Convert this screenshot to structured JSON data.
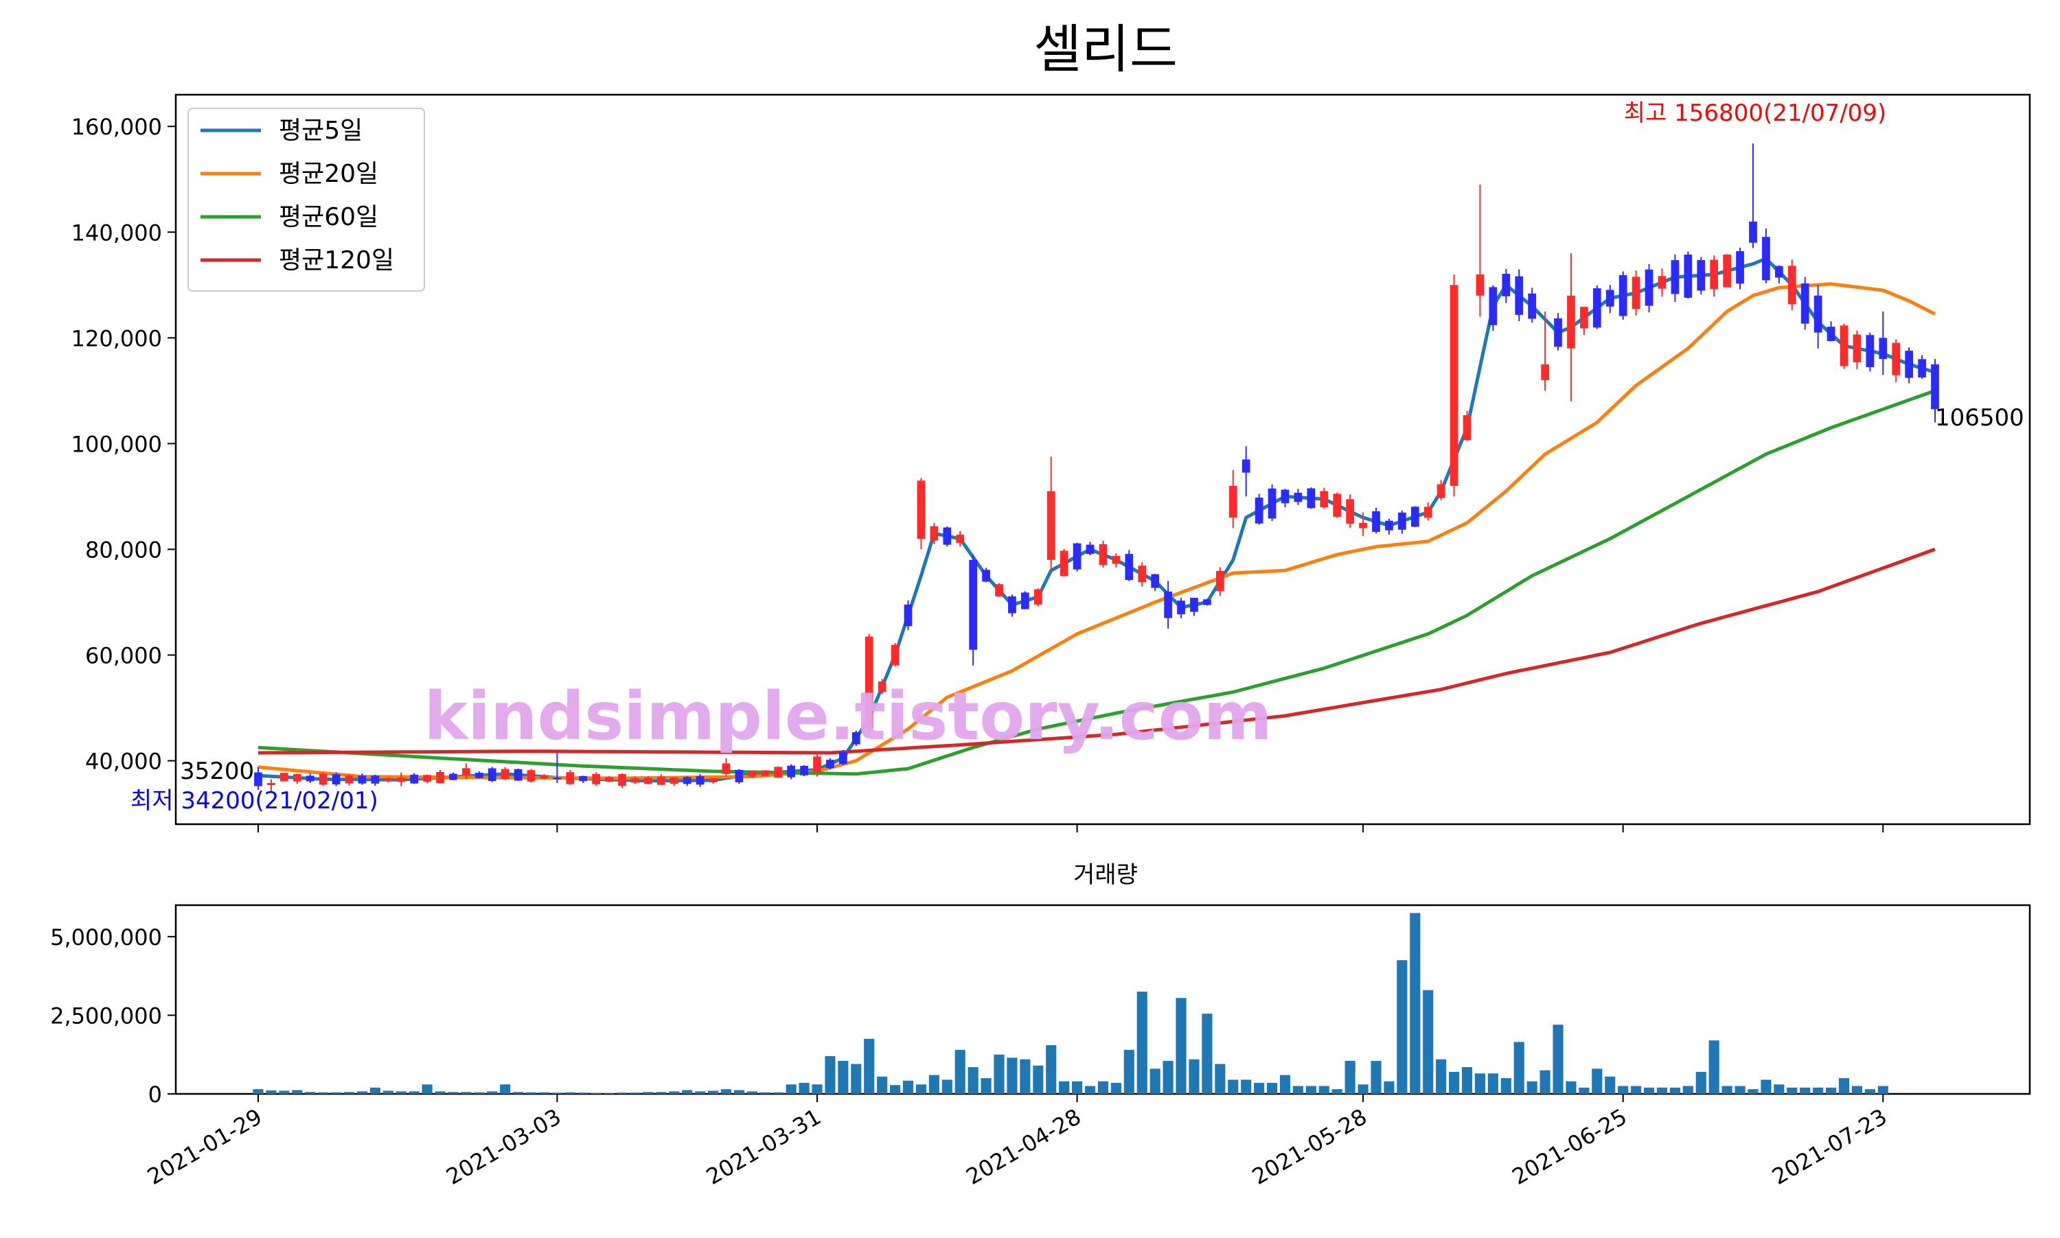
{
  "title": "셀리드",
  "watermark": "kindsimple.tistory.com",
  "volume_title": "거래량",
  "colors": {
    "up": "#ff2a2a",
    "down": "#2b2bff",
    "ma5": "#1f77b4",
    "ma20": "#ff7f0e",
    "ma60": "#2ca02c",
    "ma120": "#d62728",
    "volume": "#1f77b4",
    "high_label": "#ff0000",
    "low_label": "#0000ff",
    "watermark": "#e2a6ec"
  },
  "annotations": {
    "high": "최고 156800(21/07/09)",
    "low": "최저 34200(21/02/01)",
    "first_close": "35200",
    "last_close": "106500"
  },
  "chart_data": [
    {
      "type": "candlestick",
      "x_type": "date",
      "date_range": [
        "2021-01-29",
        "2021-07-29"
      ],
      "xticks": [
        "2021-01-29",
        "2021-03-03",
        "2021-03-31",
        "2021-04-28",
        "2021-05-28",
        "2021-06-25",
        "2021-07-23"
      ],
      "ylim": [
        28000,
        166000
      ],
      "yticks": [
        40000,
        60000,
        80000,
        100000,
        120000,
        140000,
        160000
      ],
      "ytick_labels": [
        "40,000",
        "60,000",
        "80,000",
        "100,000",
        "120,000",
        "140,000",
        "160,000"
      ],
      "grid": false,
      "legend": "upper-left",
      "ohlc_anchors": [
        {
          "date": "2021-01-29",
          "open": 37800,
          "high": 38800,
          "low": 34500,
          "close": 35200
        },
        {
          "date": "2021-02-01",
          "open": 35400,
          "high": 36500,
          "low": 34200,
          "close": 35800
        },
        {
          "date": "2021-02-15",
          "open": 36000,
          "high": 37800,
          "low": 35200,
          "close": 36800
        },
        {
          "date": "2021-02-22",
          "open": 37200,
          "high": 39500,
          "low": 36500,
          "close": 38600
        },
        {
          "date": "2021-03-03",
          "open": 36800,
          "high": 41500,
          "low": 35800,
          "close": 36500
        },
        {
          "date": "2021-03-22",
          "open": 37500,
          "high": 40500,
          "low": 37000,
          "close": 39500
        },
        {
          "date": "2021-03-31",
          "open": 37800,
          "high": 41500,
          "low": 37000,
          "close": 40800
        },
        {
          "date": "2021-04-06",
          "open": 46000,
          "high": 64000,
          "low": 45000,
          "close": 63500
        },
        {
          "date": "2021-04-12",
          "open": 82000,
          "high": 93500,
          "low": 80000,
          "close": 93000
        },
        {
          "date": "2021-04-16",
          "open": 78000,
          "high": 79000,
          "low": 58000,
          "close": 61000
        },
        {
          "date": "2021-04-26",
          "open": 78000,
          "high": 97500,
          "low": 76000,
          "close": 91000
        },
        {
          "date": "2021-05-07",
          "open": 72000,
          "high": 74000,
          "low": 65000,
          "close": 67000
        },
        {
          "date": "2021-05-14",
          "open": 86000,
          "high": 95000,
          "low": 84000,
          "close": 92000
        },
        {
          "date": "2021-05-17",
          "open": 97000,
          "high": 99500,
          "low": 90000,
          "close": 94500
        },
        {
          "date": "2021-05-28",
          "open": 84000,
          "high": 87000,
          "low": 82500,
          "close": 85000
        },
        {
          "date": "2021-06-08",
          "open": 92000,
          "high": 132000,
          "low": 90000,
          "close": 130000
        },
        {
          "date": "2021-06-10",
          "open": 128000,
          "high": 149000,
          "low": 124000,
          "close": 132000
        },
        {
          "date": "2021-06-17",
          "open": 112000,
          "high": 125000,
          "low": 110000,
          "close": 115000
        },
        {
          "date": "2021-06-21",
          "open": 118000,
          "high": 136000,
          "low": 108000,
          "close": 128000
        },
        {
          "date": "2021-07-09",
          "open": 142000,
          "high": 156800,
          "low": 137000,
          "close": 138000
        },
        {
          "date": "2021-07-16",
          "open": 128000,
          "high": 130000,
          "low": 118000,
          "close": 121000
        },
        {
          "date": "2021-07-23",
          "open": 120000,
          "high": 125000,
          "low": 113000,
          "close": 116000
        },
        {
          "date": "2021-07-29",
          "open": 115000,
          "high": 116000,
          "low": 104000,
          "close": 106500
        }
      ],
      "series": [
        {
          "name": "평균5일",
          "points": [
            [
              "2021-01-29",
              37200
            ],
            [
              "2021-02-05",
              36500
            ],
            [
              "2021-02-15",
              36400
            ],
            [
              "2021-02-25",
              37500
            ],
            [
              "2021-03-03",
              36800
            ],
            [
              "2021-03-12",
              36200
            ],
            [
              "2021-03-19",
              36300
            ],
            [
              "2021-03-24",
              37500
            ],
            [
              "2021-03-31",
              38300
            ],
            [
              "2021-04-02",
              40500
            ],
            [
              "2021-04-06",
              48000
            ],
            [
              "2021-04-08",
              60000
            ],
            [
              "2021-04-12",
              75000
            ],
            [
              "2021-04-13",
              83000
            ],
            [
              "2021-04-15",
              82000
            ],
            [
              "2021-04-19",
              75000
            ],
            [
              "2021-04-21",
              69500
            ],
            [
              "2021-04-23",
              71000
            ],
            [
              "2021-04-26",
              76000
            ],
            [
              "2021-04-29",
              80000
            ],
            [
              "2021-05-03",
              78000
            ],
            [
              "2021-05-06",
              74000
            ],
            [
              "2021-05-10",
              69000
            ],
            [
              "2021-05-12",
              70000
            ],
            [
              "2021-05-14",
              78000
            ],
            [
              "2021-05-17",
              86000
            ],
            [
              "2021-05-20",
              90000
            ],
            [
              "2021-05-25",
              89500
            ],
            [
              "2021-05-28",
              86000
            ],
            [
              "2021-06-01",
              84500
            ],
            [
              "2021-06-04",
              87000
            ],
            [
              "2021-06-07",
              91000
            ],
            [
              "2021-06-09",
              103000
            ],
            [
              "2021-06-11",
              126000
            ],
            [
              "2021-06-14",
              130000
            ],
            [
              "2021-06-16",
              126000
            ],
            [
              "2021-06-18",
              121000
            ],
            [
              "2021-06-21",
              122000
            ],
            [
              "2021-06-24",
              127500
            ],
            [
              "2021-06-28",
              128500
            ],
            [
              "2021-07-01",
              131500
            ],
            [
              "2021-07-06",
              132000
            ],
            [
              "2021-07-09",
              134000
            ],
            [
              "2021-07-12",
              135000
            ],
            [
              "2021-07-14",
              130000
            ],
            [
              "2021-07-16",
              123000
            ],
            [
              "2021-07-20",
              118500
            ],
            [
              "2021-07-23",
              117000
            ],
            [
              "2021-07-27",
              115000
            ],
            [
              "2021-07-29",
              113500
            ]
          ]
        },
        {
          "name": "평균20일",
          "points": [
            [
              "2021-01-29",
              38800
            ],
            [
              "2021-02-10",
              37000
            ],
            [
              "2021-02-25",
              36800
            ],
            [
              "2021-03-10",
              36700
            ],
            [
              "2021-03-24",
              37000
            ],
            [
              "2021-03-31",
              38000
            ],
            [
              "2021-04-05",
              40000
            ],
            [
              "2021-04-09",
              46000
            ],
            [
              "2021-04-14",
              52000
            ],
            [
              "2021-04-21",
              57000
            ],
            [
              "2021-04-28",
              64000
            ],
            [
              "2021-05-06",
              70000
            ],
            [
              "2021-05-14",
              75500
            ],
            [
              "2021-05-20",
              76000
            ],
            [
              "2021-05-26",
              79000
            ],
            [
              "2021-05-31",
              80500
            ],
            [
              "2021-06-04",
              81500
            ],
            [
              "2021-06-09",
              85000
            ],
            [
              "2021-06-14",
              91000
            ],
            [
              "2021-06-17",
              98000
            ],
            [
              "2021-06-23",
              104000
            ],
            [
              "2021-06-28",
              111000
            ],
            [
              "2021-07-02",
              118000
            ],
            [
              "2021-07-07",
              125000
            ],
            [
              "2021-07-09",
              128000
            ],
            [
              "2021-07-13",
              129500
            ],
            [
              "2021-07-19",
              130200
            ],
            [
              "2021-07-23",
              129000
            ],
            [
              "2021-07-27",
              127000
            ],
            [
              "2021-07-29",
              124500
            ]
          ]
        },
        {
          "name": "평균60일",
          "points": [
            [
              "2021-01-29",
              42500
            ],
            [
              "2021-02-18",
              40500
            ],
            [
              "2021-03-05",
              39000
            ],
            [
              "2021-03-20",
              38000
            ],
            [
              "2021-04-05",
              37500
            ],
            [
              "2021-04-10",
              38500
            ],
            [
              "2021-04-16",
              42500
            ],
            [
              "2021-04-23",
              46000
            ],
            [
              "2021-05-03",
              49000
            ],
            [
              "2021-05-14",
              53000
            ],
            [
              "2021-05-25",
              57500
            ],
            [
              "2021-06-04",
              64000
            ],
            [
              "2021-06-09",
              67500
            ],
            [
              "2021-06-16",
              75000
            ],
            [
              "2021-06-24",
              82000
            ],
            [
              "2021-07-02",
              90000
            ],
            [
              "2021-07-12",
              98000
            ],
            [
              "2021-07-19",
              103000
            ],
            [
              "2021-07-29",
              110000
            ]
          ]
        },
        {
          "name": "평균120일",
          "points": [
            [
              "2021-01-29",
              41500
            ],
            [
              "2021-03-01",
              41800
            ],
            [
              "2021-04-01",
              41500
            ],
            [
              "2021-04-15",
              43000
            ],
            [
              "2021-05-03",
              45000
            ],
            [
              "2021-05-20",
              48500
            ],
            [
              "2021-06-07",
              53500
            ],
            [
              "2021-06-14",
              56500
            ],
            [
              "2021-06-24",
              60500
            ],
            [
              "2021-07-05",
              66000
            ],
            [
              "2021-07-16",
              72000
            ],
            [
              "2021-07-29",
              80000
            ]
          ]
        }
      ]
    },
    {
      "type": "bar",
      "title": "거래량",
      "x_type": "date",
      "xticks": [
        "2021-01-29",
        "2021-03-03",
        "2021-03-31",
        "2021-04-28",
        "2021-05-28",
        "2021-06-25",
        "2021-07-23"
      ],
      "ylim": [
        0,
        6000000
      ],
      "yticks": [
        0,
        2500000,
        5000000
      ],
      "ytick_labels": [
        "0",
        "2,500,000",
        "5,000,000"
      ],
      "volumes": [
        150000,
        110000,
        100000,
        120000,
        60000,
        50000,
        50000,
        60000,
        80000,
        200000,
        100000,
        80000,
        80000,
        300000,
        80000,
        60000,
        60000,
        50000,
        80000,
        300000,
        60000,
        50000,
        50000,
        40000,
        50000,
        40000,
        30000,
        30000,
        40000,
        40000,
        60000,
        60000,
        80000,
        120000,
        80000,
        100000,
        150000,
        120000,
        80000,
        50000,
        50000,
        300000,
        350000,
        300000,
        1200000,
        1050000,
        950000,
        1750000,
        550000,
        280000,
        420000,
        300000,
        600000,
        450000,
        1400000,
        850000,
        500000,
        1250000,
        1150000,
        1100000,
        900000,
        1550000,
        400000,
        400000,
        250000,
        400000,
        350000,
        1400000,
        3250000,
        800000,
        1050000,
        3050000,
        1100000,
        2550000,
        950000,
        450000,
        450000,
        350000,
        350000,
        600000,
        250000,
        250000,
        250000,
        150000,
        1050000,
        300000,
        1050000,
        400000,
        4250000,
        5750000,
        3300000,
        1100000,
        700000,
        850000,
        650000,
        650000,
        500000,
        1650000,
        400000,
        750000,
        2200000,
        400000,
        200000,
        800000,
        550000,
        250000,
        250000,
        200000,
        200000,
        200000,
        250000,
        700000,
        1700000,
        250000,
        250000,
        150000,
        450000,
        300000,
        200000,
        200000,
        200000,
        200000,
        500000,
        250000,
        150000,
        250000
      ]
    }
  ]
}
